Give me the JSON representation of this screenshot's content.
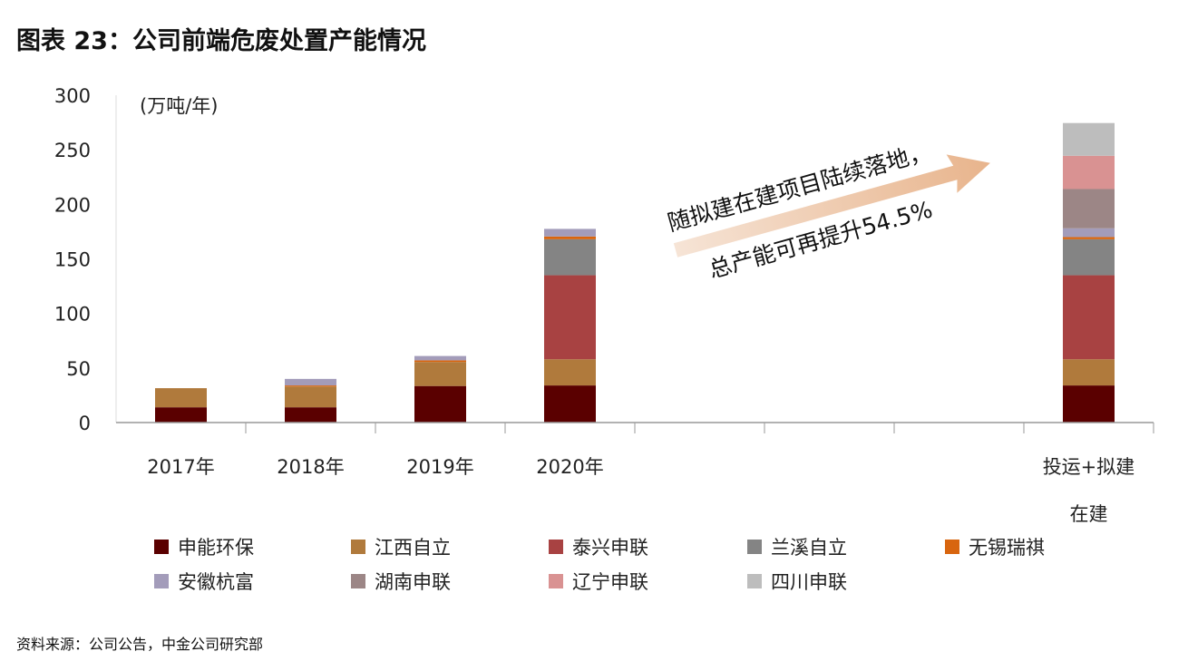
{
  "title": "图表 23：公司前端危废处置产能情况",
  "source": "资料来源：公司公告，中金公司研究部",
  "chart_data": {
    "type": "bar",
    "stacked": true,
    "title": "图表 23：公司前端危废处置产能情况",
    "ylabel": "(万吨/年)",
    "ylim": [
      0,
      300
    ],
    "yticks": [
      0,
      50,
      100,
      150,
      200,
      250,
      300
    ],
    "grid": false,
    "legend_position": "bottom",
    "categories": [
      "2017年",
      "2018年",
      "2019年",
      "2020年",
      "",
      "",
      "",
      "投运+拟建在建"
    ],
    "series": [
      {
        "name": "申能环保",
        "color": "#5a0000",
        "values": [
          14,
          14,
          33.5,
          34,
          0,
          0,
          0,
          34
        ]
      },
      {
        "name": "江西自立",
        "color": "#b07a3c",
        "values": [
          17.5,
          19,
          22,
          24,
          0,
          0,
          0,
          24
        ]
      },
      {
        "name": "泰兴申联",
        "color": "#a84242",
        "values": [
          0,
          0,
          0,
          77,
          0,
          0,
          0,
          77
        ]
      },
      {
        "name": "兰溪自立",
        "color": "#848484",
        "values": [
          0,
          0,
          0,
          33,
          0,
          0,
          0,
          33
        ]
      },
      {
        "name": "无锡瑞祺",
        "color": "#d8650f",
        "values": [
          0,
          1,
          1.5,
          2.5,
          0,
          0,
          0,
          2
        ]
      },
      {
        "name": "安徽杭富",
        "color": "#a39cba",
        "values": [
          0,
          6,
          4,
          7,
          0,
          0,
          0,
          8
        ]
      },
      {
        "name": "湖南申联",
        "color": "#9c8686",
        "values": [
          0,
          0,
          0,
          0,
          0,
          0,
          0,
          36
        ]
      },
      {
        "name": "辽宁申联",
        "color": "#d99292",
        "values": [
          0,
          0,
          0,
          0,
          0,
          0,
          0,
          30.5
        ]
      },
      {
        "name": "四川申联",
        "color": "#bdbdbd",
        "values": [
          0,
          0,
          0,
          0,
          0,
          0,
          0,
          30
        ]
      }
    ],
    "annotation": {
      "line1": "随拟建在建项目陆续落地，",
      "line2": "总产能可再提升54.5%",
      "arrow_color": "#e8b48c"
    }
  }
}
